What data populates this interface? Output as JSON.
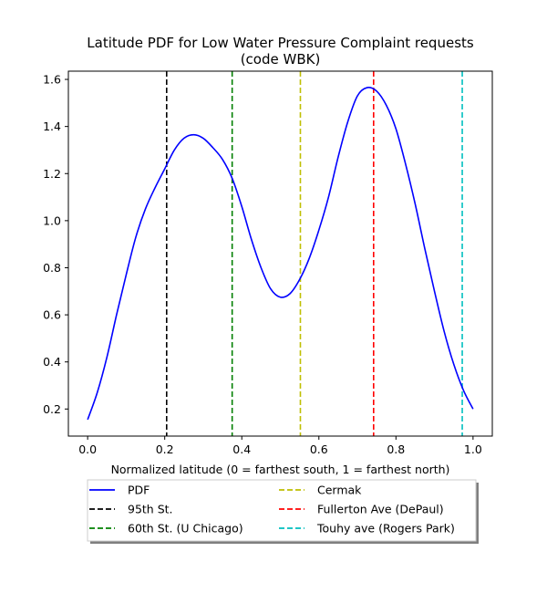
{
  "chart_data": {
    "type": "line",
    "title_lines": [
      "Latitude PDF for Low Water Pressure Complaint  requests",
      "(code WBK)"
    ],
    "xlabel": "Normalized latitude (0 = farthest south, 1 = farthest north)",
    "ylabel": "",
    "xlim": [
      -0.05,
      1.05
    ],
    "ylim": [
      0.085,
      1.635
    ],
    "xticks": [
      0.0,
      0.2,
      0.4,
      0.6,
      0.8,
      1.0
    ],
    "xtick_labels": [
      "0.0",
      "0.2",
      "0.4",
      "0.6",
      "0.8",
      "1.0"
    ],
    "yticks": [
      0.2,
      0.4,
      0.6,
      0.8,
      1.0,
      1.2,
      1.4,
      1.6
    ],
    "ytick_labels": [
      "0.2",
      "0.4",
      "0.6",
      "0.8",
      "1.0",
      "1.2",
      "1.4",
      "1.6"
    ],
    "grid": false,
    "legend_position": "below",
    "series": [
      {
        "name": "PDF",
        "color": "#0000ff",
        "style": "solid",
        "x": [
          0.0,
          0.025,
          0.05,
          0.075,
          0.1,
          0.125,
          0.15,
          0.175,
          0.2,
          0.225,
          0.25,
          0.275,
          0.3,
          0.325,
          0.35,
          0.375,
          0.4,
          0.425,
          0.45,
          0.475,
          0.5,
          0.525,
          0.55,
          0.575,
          0.6,
          0.625,
          0.65,
          0.675,
          0.7,
          0.725,
          0.75,
          0.775,
          0.8,
          0.825,
          0.85,
          0.875,
          0.9,
          0.925,
          0.95,
          0.975,
          1.0
        ],
        "y": [
          0.155,
          0.27,
          0.42,
          0.6,
          0.77,
          0.93,
          1.05,
          1.14,
          1.22,
          1.3,
          1.35,
          1.365,
          1.35,
          1.31,
          1.26,
          1.18,
          1.06,
          0.92,
          0.8,
          0.71,
          0.675,
          0.69,
          0.75,
          0.84,
          0.96,
          1.1,
          1.27,
          1.42,
          1.53,
          1.565,
          1.55,
          1.49,
          1.39,
          1.24,
          1.07,
          0.88,
          0.7,
          0.53,
          0.39,
          0.28,
          0.2
        ]
      }
    ],
    "vlines": [
      {
        "name": "95th St.",
        "x": 0.205,
        "color": "#000000"
      },
      {
        "name": "60th St. (U Chicago)",
        "x": 0.375,
        "color": "#008000"
      },
      {
        "name": "Cermak",
        "x": 0.552,
        "color": "#bfbf00"
      },
      {
        "name": "Fullerton Ave (DePaul)",
        "x": 0.742,
        "color": "#ff0000"
      },
      {
        "name": "Touhy ave (Rogers Park)",
        "x": 0.972,
        "color": "#00bfbf"
      }
    ],
    "legend": [
      {
        "label": "PDF",
        "color": "#0000ff",
        "style": "solid"
      },
      {
        "label": "Cermak",
        "color": "#bfbf00",
        "style": "dashed"
      },
      {
        "label": "95th St.",
        "color": "#000000",
        "style": "dashed"
      },
      {
        "label": "Fullerton Ave (DePaul)",
        "color": "#ff0000",
        "style": "dashed"
      },
      {
        "label": "60th St. (U Chicago)",
        "color": "#008000",
        "style": "dashed"
      },
      {
        "label": "Touhy ave (Rogers Park)",
        "color": "#00bfbf",
        "style": "dashed"
      }
    ]
  }
}
